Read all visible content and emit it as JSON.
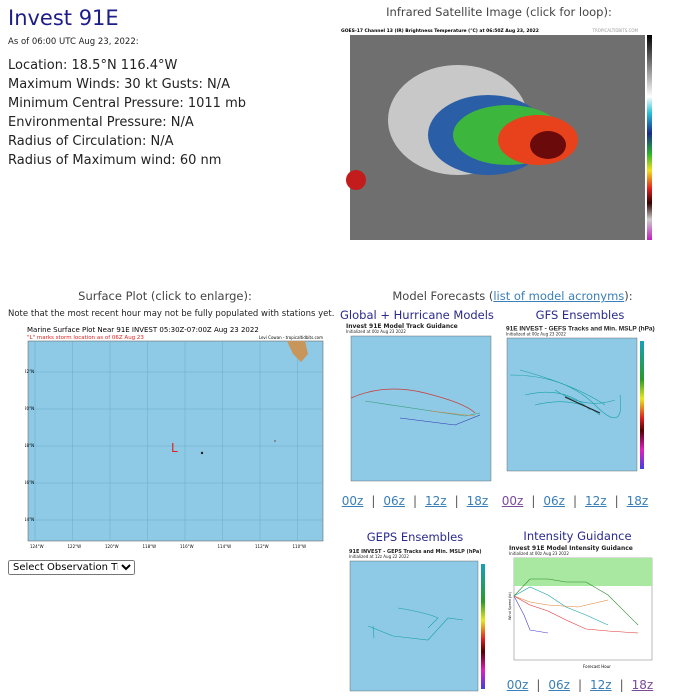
{
  "storm": {
    "title": "Invest 91E",
    "as_of": "As of 06:00 UTC Aug 23, 2022:",
    "location": "Location: 18.5°N 116.4°W",
    "max_winds": "Maximum Winds: 30 kt  Gusts: N/A",
    "min_pressure": "Minimum Central Pressure: 1011 mb",
    "env_pressure": "Environmental Pressure: N/A",
    "radius_circulation": "Radius of Circulation: N/A",
    "radius_max_wind": "Radius of Maximum wind: 60 nm"
  },
  "satellite": {
    "heading": "Infrared Satellite Image (click for loop):",
    "image_title": "GOES-17 Channel 13 (IR) Brightness Temperature (°C) at 06:50Z Aug 23, 2022",
    "credit": "TROPICALTIDBITS.COM"
  },
  "surface": {
    "heading": "Surface Plot (click to enlarge):",
    "note": "Note that the most recent hour may not be fully populated with stations yet.",
    "image_title": "Marine Surface Plot Near 91E INVEST 05:30Z-07:00Z Aug 23 2022",
    "image_subtitle": "\"L\" marks storm location as of 06Z Aug 23",
    "credit": "Levi Cowan - tropicaltidbits.com",
    "storm_marker": "L",
    "lat_labels": [
      "22°N",
      "20°N",
      "18°N",
      "16°N",
      "14°N"
    ],
    "lon_labels": [
      "124°W",
      "122°W",
      "120°W",
      "118°W",
      "116°W",
      "114°W",
      "112°W",
      "110°W"
    ],
    "select_label": "Select Observation Time..."
  },
  "models": {
    "heading_prefix": "Model Forecasts (",
    "acronyms_link": "list of model acronyms",
    "heading_suffix": "):",
    "global": {
      "heading": "Global + Hurricane Models",
      "image_title": "Invest 91E Model Track Guidance",
      "image_subtitle": "Initialized at 00z Aug 23 2022",
      "links": [
        "00z",
        "06z",
        "12z",
        "18z"
      ]
    },
    "gefs": {
      "heading": "GFS Ensembles",
      "image_title": "91E INVEST - GEFS Tracks and Min. MSLP (hPa)",
      "image_subtitle": "Initialized at 00z Aug 23 2022",
      "links": [
        "00z",
        "06z",
        "12z",
        "18z"
      ]
    },
    "geps": {
      "heading": "GEPS Ensembles",
      "image_title": "91E INVEST - GEPS Tracks and Min. MSLP (hPa)",
      "image_subtitle": "Initialized at 12z Aug 22 2022"
    },
    "intensity": {
      "heading": "Intensity Guidance",
      "image_title": "Invest 91E Model Intensity Guidance",
      "image_subtitle": "Initialized at 00z Aug 23 2022",
      "xlabel": "Forecast Hour",
      "ylabel": "Wind Speed (kt)",
      "links": [
        "00z",
        "06z",
        "12z",
        "18z"
      ]
    }
  },
  "colors": {
    "title": "#1c1c8a",
    "ocean": "#8ecae6",
    "link": "#3a7fb8",
    "visited": "#7a4a9a"
  }
}
